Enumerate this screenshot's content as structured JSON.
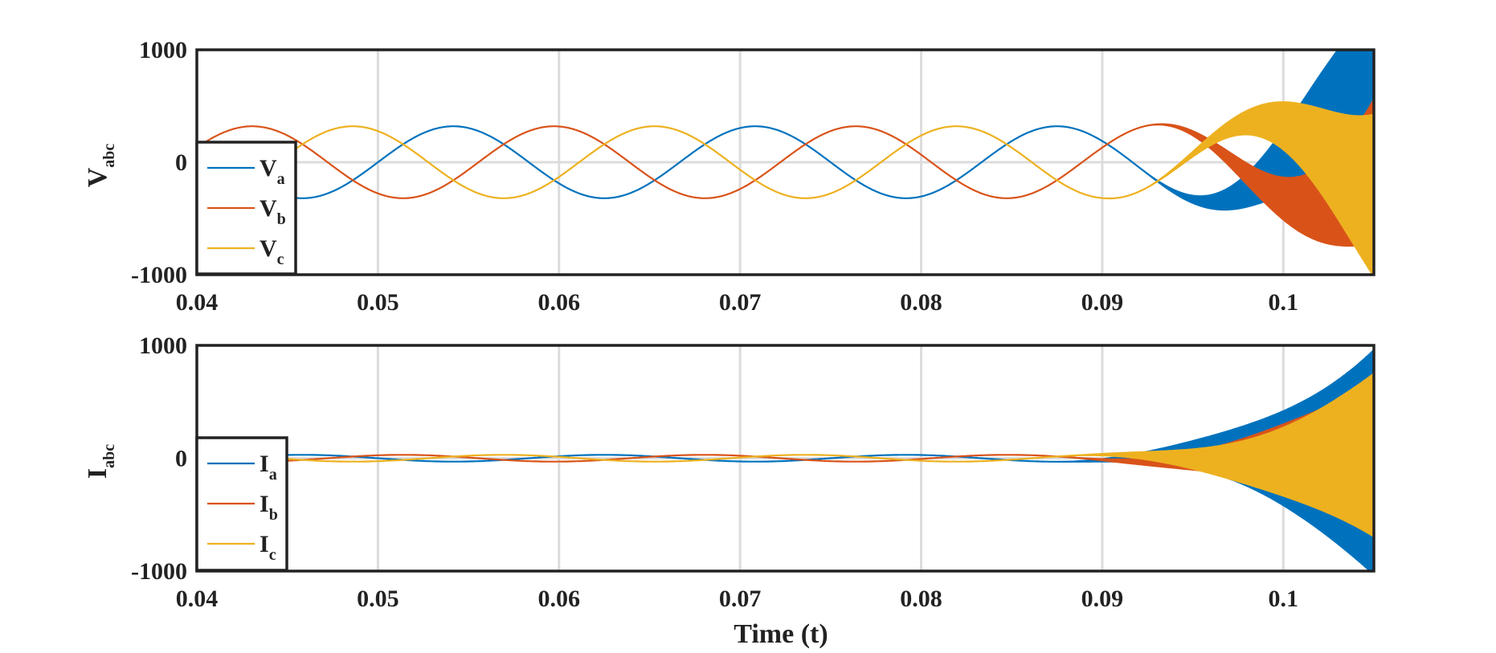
{
  "figure": {
    "xlabel": "Time (t)"
  },
  "chart_data": [
    {
      "type": "line",
      "ylabel_main": "V",
      "ylabel_sub": "abc",
      "xlim": [
        0.04,
        0.105
      ],
      "ylim": [
        -1000,
        1000
      ],
      "x_ticks": [
        0.04,
        0.05,
        0.06,
        0.07,
        0.08,
        0.09,
        0.1
      ],
      "x_tick_labels": [
        "0.04",
        "0.05",
        "0.06",
        "0.07",
        "0.08",
        "0.09",
        "0.1"
      ],
      "y_ticks": [
        -1000,
        0,
        1000
      ],
      "y_tick_labels": [
        "-1000",
        "0",
        "1000"
      ],
      "grid": true,
      "legend_position": "left",
      "series": [
        {
          "name_main": "V",
          "name_sub": "a",
          "color": "#0072BD",
          "phase_deg": 0
        },
        {
          "name_main": "V",
          "name_sub": "b",
          "color": "#D95319",
          "phase_deg": -120
        },
        {
          "name_main": "V",
          "name_sub": "c",
          "color": "#EDB120",
          "phase_deg": 120
        }
      ],
      "steady_amplitude": 320,
      "frequency_hz": 60,
      "instability_onset": 0.09,
      "final_envelope": 1000
    },
    {
      "type": "line",
      "ylabel_main": "I",
      "ylabel_sub": "abc",
      "xlim": [
        0.04,
        0.105
      ],
      "ylim": [
        -1000,
        1000
      ],
      "x_ticks": [
        0.04,
        0.05,
        0.06,
        0.07,
        0.08,
        0.09,
        0.1
      ],
      "x_tick_labels": [
        "0.04",
        "0.05",
        "0.06",
        "0.07",
        "0.08",
        "0.09",
        "0.1"
      ],
      "y_ticks": [
        -1000,
        0,
        1000
      ],
      "y_tick_labels": [
        "-1000",
        "0",
        "1000"
      ],
      "grid": true,
      "legend_position": "left",
      "series": [
        {
          "name_main": "I",
          "name_sub": "a",
          "color": "#0072BD",
          "phase_deg": 180
        },
        {
          "name_main": "I",
          "name_sub": "b",
          "color": "#D95319",
          "phase_deg": 60
        },
        {
          "name_main": "I",
          "name_sub": "c",
          "color": "#EDB120",
          "phase_deg": -60
        }
      ],
      "steady_amplitude": 30,
      "frequency_hz": 60,
      "instability_onset": 0.085,
      "final_envelope": 1000
    }
  ]
}
